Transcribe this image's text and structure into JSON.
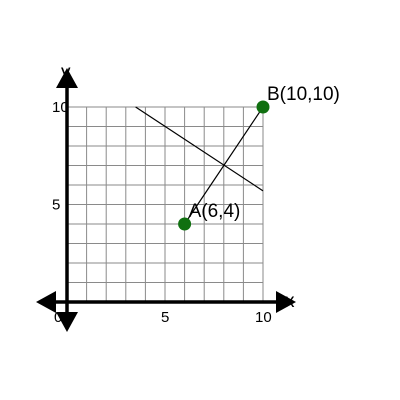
{
  "chart_data": {
    "type": "scatter",
    "xlabel": "x",
    "ylabel": "y",
    "xlim": [
      0,
      10
    ],
    "ylim": [
      0,
      10
    ],
    "grid": true,
    "x_ticks": [
      {
        "value": 0,
        "label": "0"
      },
      {
        "value": 5,
        "label": "5"
      },
      {
        "value": 10,
        "label": "10"
      }
    ],
    "y_ticks": [
      {
        "value": 5,
        "label": "5"
      },
      {
        "value": 10,
        "label": "10"
      }
    ],
    "points": [
      {
        "name": "A",
        "label": "A(6,4)",
        "x": 6,
        "y": 4
      },
      {
        "name": "B",
        "label": "B(10,10)",
        "x": 10,
        "y": 10
      }
    ],
    "lines": [
      {
        "from": [
          6,
          4
        ],
        "to": [
          10,
          10
        ]
      },
      {
        "from": [
          3.5,
          10
        ],
        "to": [
          10,
          5.7
        ]
      }
    ],
    "colors": {
      "point": "#107010",
      "grid": "#8a8a8a",
      "axis": "#000000",
      "line": "#000000"
    }
  }
}
